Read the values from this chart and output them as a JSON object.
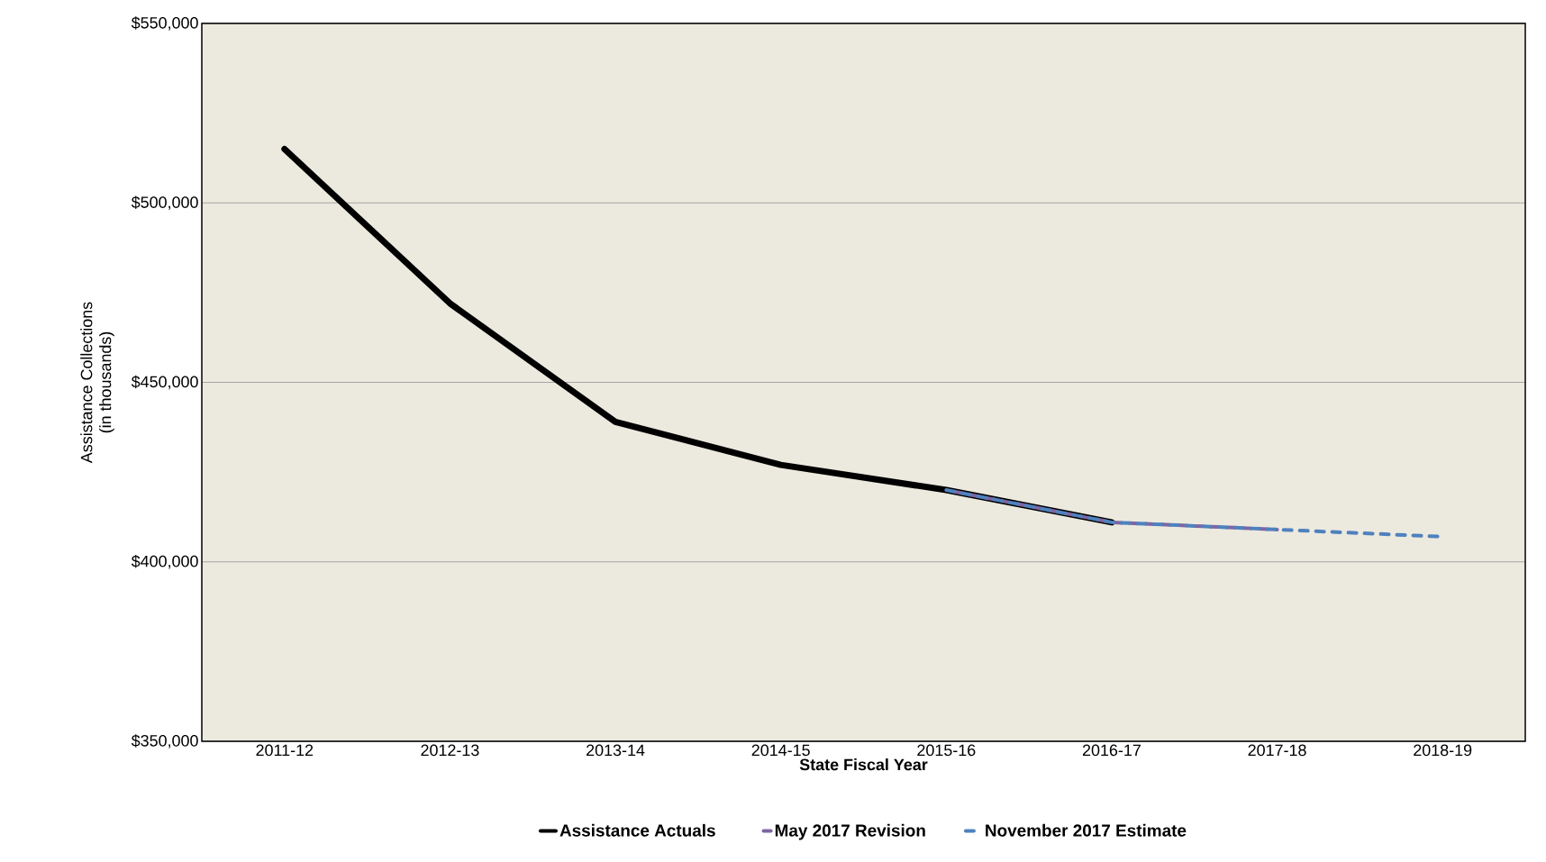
{
  "chart_data": {
    "type": "line",
    "xlabel": "State Fiscal Year",
    "ylabel": "Assistance Collections\n(in thousands)",
    "categories": [
      "2011-12",
      "2012-13",
      "2013-14",
      "2014-15",
      "2015-16",
      "2016-17",
      "2017-18",
      "2018-19"
    ],
    "series": [
      {
        "name": "Assistance Actuals",
        "color": "#000000",
        "line_style": "solid",
        "values": [
          515000,
          472000,
          439000,
          427000,
          420000,
          411000,
          null,
          null
        ]
      },
      {
        "name": "May 2017 Revision",
        "color": "#8064a2",
        "line_style": "dashed",
        "values": [
          null,
          null,
          null,
          null,
          420000,
          411000,
          409000,
          null
        ]
      },
      {
        "name": "November 2017 Estimate",
        "color": "#4f81bd",
        "line_style": "dashed",
        "values": [
          null,
          null,
          null,
          null,
          420000,
          411000,
          409000,
          407000
        ]
      }
    ],
    "ylim": [
      350000,
      550000
    ],
    "yticks": [
      {
        "value": 350000,
        "label": "$350,000"
      },
      {
        "value": 400000,
        "label": "$400,000"
      },
      {
        "value": 450000,
        "label": "$450,000"
      },
      {
        "value": 500000,
        "label": "$500,000"
      },
      {
        "value": 550000,
        "label": "$550,000"
      }
    ],
    "grid": "y",
    "legend": "bottom",
    "marker": "none"
  }
}
